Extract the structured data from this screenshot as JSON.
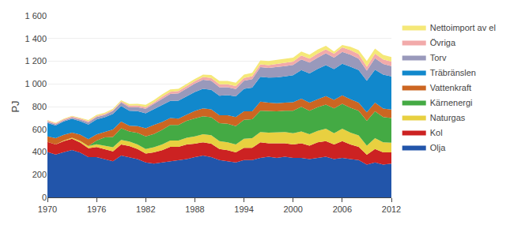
{
  "chart_data": {
    "type": "area",
    "stacked": true,
    "x": [
      1970,
      1971,
      1972,
      1973,
      1974,
      1975,
      1976,
      1977,
      1978,
      1979,
      1980,
      1981,
      1982,
      1983,
      1984,
      1985,
      1986,
      1987,
      1988,
      1989,
      1990,
      1991,
      1992,
      1993,
      1994,
      1995,
      1996,
      1997,
      1998,
      1999,
      2000,
      2001,
      2002,
      2003,
      2004,
      2005,
      2006,
      2007,
      2008,
      2009,
      2010,
      2011,
      2012
    ],
    "series": [
      {
        "name": "Olja",
        "color": "#2255aa",
        "values": [
          400,
          378,
          398,
          418,
          395,
          355,
          355,
          338,
          318,
          368,
          355,
          338,
          308,
          298,
          308,
          318,
          328,
          338,
          355,
          368,
          355,
          328,
          318,
          308,
          328,
          328,
          348,
          358,
          348,
          358,
          348,
          348,
          338,
          348,
          358,
          338,
          348,
          338,
          328,
          288,
          308,
          288,
          298
        ]
      },
      {
        "name": "Kol",
        "color": "#cc2222",
        "values": [
          88,
          88,
          98,
          98,
          88,
          78,
          88,
          88,
          88,
          98,
          98,
          88,
          78,
          98,
          108,
          128,
          118,
          128,
          118,
          118,
          118,
          98,
          98,
          88,
          108,
          108,
          138,
          118,
          128,
          118,
          118,
          128,
          118,
          138,
          138,
          128,
          148,
          128,
          118,
          88,
          118,
          108,
          98
        ]
      },
      {
        "name": "Naturgas",
        "color": "#e8d040",
        "values": [
          0,
          0,
          5,
          10,
          15,
          20,
          25,
          30,
          35,
          40,
          40,
          40,
          40,
          45,
          50,
          55,
          55,
          60,
          65,
          70,
          75,
          70,
          70,
          70,
          80,
          85,
          90,
          95,
          95,
          100,
          100,
          105,
          100,
          100,
          110,
          100,
          110,
          105,
          100,
          80,
          95,
          90,
          85
        ]
      },
      {
        "name": "Kärnenergi",
        "color": "#44aa44",
        "values": [
          0,
          0,
          0,
          0,
          0,
          0,
          32,
          72,
          92,
          102,
          88,
          102,
          112,
          118,
          128,
          138,
          138,
          148,
          158,
          158,
          158,
          158,
          162,
          162,
          168,
          168,
          188,
          188,
          188,
          188,
          198,
          218,
          208,
          208,
          212,
          218,
          218,
          218,
          218,
          218,
          238,
          222,
          218
        ]
      },
      {
        "name": "Vattenkraft",
        "color": "#cc6622",
        "values": [
          50,
          55,
          50,
          45,
          55,
          60,
          55,
          50,
          65,
          60,
          50,
          60,
          70,
          80,
          70,
          60,
          55,
          55,
          65,
          70,
          70,
          70,
          75,
          80,
          75,
          70,
          80,
          75,
          70,
          70,
          75,
          70,
          70,
          70,
          75,
          75,
          75,
          75,
          70,
          75,
          75,
          75,
          75
        ]
      },
      {
        "name": "Träbränslen",
        "color": "#1188cc",
        "values": [
          118,
          112,
          118,
          122,
          118,
          128,
          132,
          128,
          138,
          138,
          132,
          132,
          132,
          138,
          148,
          152,
          158,
          162,
          168,
          172,
          172,
          172,
          178,
          182,
          198,
          208,
          218,
          222,
          228,
          232,
          238,
          252,
          258,
          268,
          272,
          272,
          278,
          288,
          288,
          278,
          292,
          298,
          292
        ]
      },
      {
        "name": "Torv",
        "color": "#9999bb",
        "values": [
          10,
          10,
          10,
          10,
          15,
          20,
          20,
          20,
          25,
          30,
          30,
          35,
          40,
          45,
          55,
          60,
          65,
          70,
          75,
          80,
          80,
          75,
          70,
          65,
          70,
          75,
          85,
          85,
          90,
          90,
          90,
          95,
          95,
          100,
          105,
          100,
          105,
          105,
          100,
          90,
          100,
          95,
          90
        ]
      },
      {
        "name": "Övriga",
        "color": "#f2aaaa",
        "values": [
          10,
          10,
          10,
          10,
          10,
          10,
          10,
          10,
          10,
          10,
          15,
          15,
          15,
          15,
          20,
          20,
          20,
          20,
          20,
          25,
          25,
          25,
          25,
          25,
          25,
          25,
          25,
          25,
          30,
          30,
          30,
          35,
          35,
          35,
          35,
          35,
          40,
          40,
          40,
          35,
          40,
          40,
          40
        ]
      },
      {
        "name": "Nettoimport av el",
        "color": "#f5e878",
        "values": [
          5,
          5,
          5,
          5,
          5,
          10,
          10,
          10,
          10,
          10,
          15,
          15,
          20,
          20,
          20,
          20,
          20,
          20,
          20,
          20,
          25,
          30,
          30,
          30,
          30,
          30,
          35,
          35,
          35,
          35,
          35,
          35,
          35,
          35,
          30,
          20,
          20,
          30,
          35,
          50,
          45,
          40,
          40
        ]
      }
    ],
    "xlim": [
      1970,
      2012
    ],
    "xticks": [
      1970,
      1976,
      1982,
      1988,
      1994,
      2000,
      2006,
      2012
    ],
    "ylim": [
      0,
      1600
    ],
    "yticks": [
      0,
      200,
      400,
      600,
      800,
      {
        "value": 1000,
        "label": "1 000"
      },
      {
        "value": 1200,
        "label": "1 200"
      },
      {
        "value": 1400,
        "label": "1 400"
      },
      {
        "value": 1600,
        "label": "1 600"
      }
    ],
    "ylabel": "PJ",
    "grid": true,
    "legend": "right"
  }
}
